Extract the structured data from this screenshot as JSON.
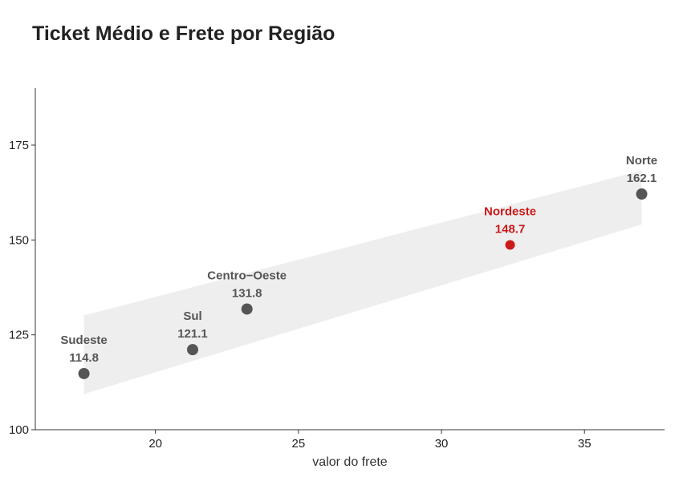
{
  "chart_data": {
    "type": "scatter",
    "title": "Ticket Médio e Frete por Região",
    "xlabel": "valor do frete",
    "ylabel": "",
    "xlim": [
      15.8,
      37.8
    ],
    "ylim": [
      100,
      190
    ],
    "x_ticks": [
      "20",
      "25",
      "30",
      "35"
    ],
    "y_ticks": [
      "100",
      "125",
      "150",
      "175"
    ],
    "grid": false,
    "points": [
      {
        "region": "Sudeste",
        "label": "114.8",
        "x": 17.5,
        "y": 114.8,
        "highlight": false
      },
      {
        "region": "Sul",
        "label": "121.1",
        "x": 21.3,
        "y": 121.1,
        "highlight": false
      },
      {
        "region": "Centro−Oeste",
        "label": "131.8",
        "x": 23.2,
        "y": 131.8,
        "highlight": false
      },
      {
        "region": "Nordeste",
        "label": "148.7",
        "x": 32.4,
        "y": 148.7,
        "highlight": true
      },
      {
        "region": "Norte",
        "label": "162.1",
        "x": 37.0,
        "y": 162.1,
        "highlight": false
      }
    ],
    "trend": {
      "x": [
        17.5,
        37.0
      ],
      "y": [
        117.3,
        161.2
      ],
      "upper": [
        130.1,
        168.3
      ],
      "lower": [
        109.4,
        154.1
      ]
    },
    "colors": {
      "point": "#555555",
      "highlight": "#cc1a1a",
      "band": "#eeeeee",
      "axis": "#333333"
    }
  }
}
